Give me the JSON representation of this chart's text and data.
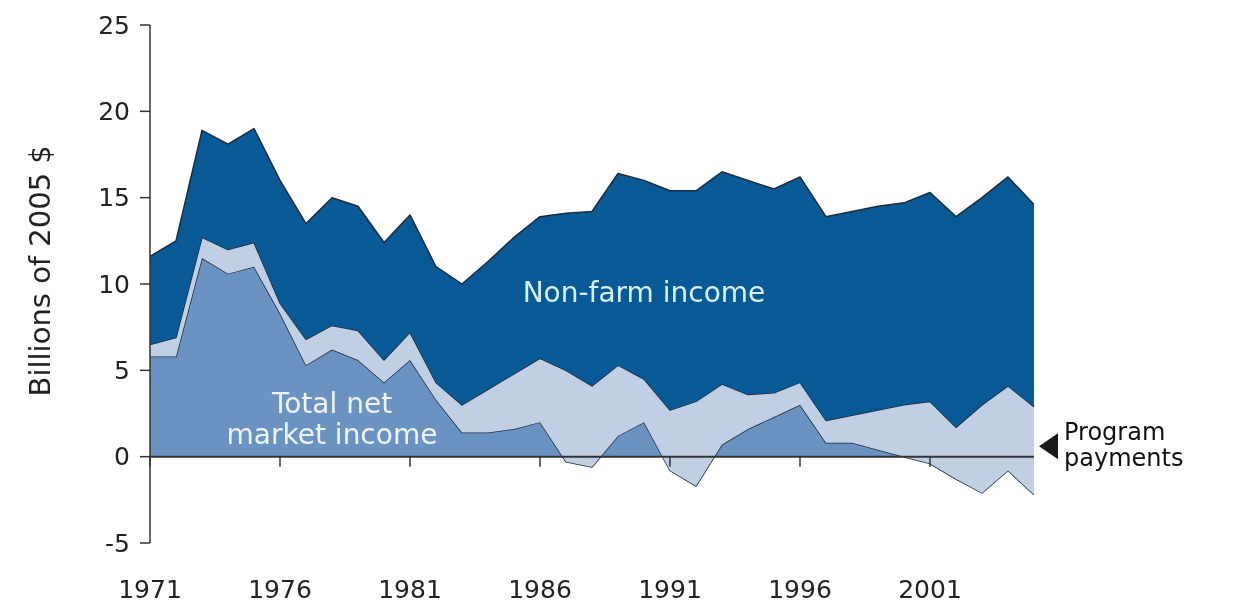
{
  "chart_data": {
    "type": "area",
    "stacked": true,
    "ylabel": "Billions of 2005 $",
    "x": [
      1971,
      1972,
      1973,
      1974,
      1975,
      1976,
      1977,
      1978,
      1979,
      1980,
      1981,
      1982,
      1983,
      1984,
      1985,
      1986,
      1987,
      1988,
      1989,
      1990,
      1991,
      1992,
      1993,
      1994,
      1995,
      1996,
      1997,
      1998,
      1999,
      2000,
      2001,
      2002,
      2003,
      2004,
      2005
    ],
    "xlim": [
      1971,
      2005
    ],
    "xticks": [
      1971,
      1976,
      1981,
      1986,
      1991,
      1996,
      2001
    ],
    "ylim": [
      -5,
      25
    ],
    "yticks": [
      -5,
      0,
      5,
      10,
      15,
      20,
      25
    ],
    "series": [
      {
        "name": "Total net market income",
        "color": "#6b93c2",
        "values": [
          5.8,
          5.8,
          11.5,
          10.6,
          11.0,
          8.3,
          5.3,
          6.2,
          5.6,
          4.3,
          5.6,
          3.3,
          1.4,
          1.4,
          1.6,
          2.0,
          -0.3,
          -0.6,
          1.2,
          2.0,
          -0.8,
          -1.7,
          0.7,
          1.6,
          2.3,
          3.0,
          0.8,
          0.8,
          0.4,
          0.0,
          -0.4,
          -1.3,
          -2.1,
          -0.8,
          -2.2
        ]
      },
      {
        "name": "Program payments",
        "color": "#c0cfe4",
        "values": [
          0.7,
          1.1,
          1.2,
          1.4,
          1.4,
          0.6,
          1.5,
          1.4,
          1.7,
          1.3,
          1.6,
          1.0,
          1.6,
          2.5,
          3.2,
          3.7,
          5.3,
          4.7,
          4.1,
          2.5,
          3.5,
          4.9,
          3.5,
          2.0,
          1.4,
          1.3,
          1.3,
          1.6,
          2.3,
          3.0,
          3.6,
          3.0,
          5.1,
          4.9,
          5.1
        ]
      },
      {
        "name": "Non-farm income",
        "color": "#075a96",
        "values": [
          5.1,
          5.6,
          6.2,
          6.1,
          6.6,
          7.1,
          6.7,
          7.4,
          7.2,
          6.8,
          6.8,
          6.7,
          7.0,
          7.4,
          7.9,
          8.2,
          9.1,
          10.1,
          11.1,
          11.5,
          12.7,
          12.2,
          12.3,
          12.4,
          11.8,
          11.9,
          11.8,
          11.8,
          11.8,
          11.7,
          12.1,
          12.2,
          12.0,
          12.1,
          11.7
        ]
      }
    ]
  }
}
